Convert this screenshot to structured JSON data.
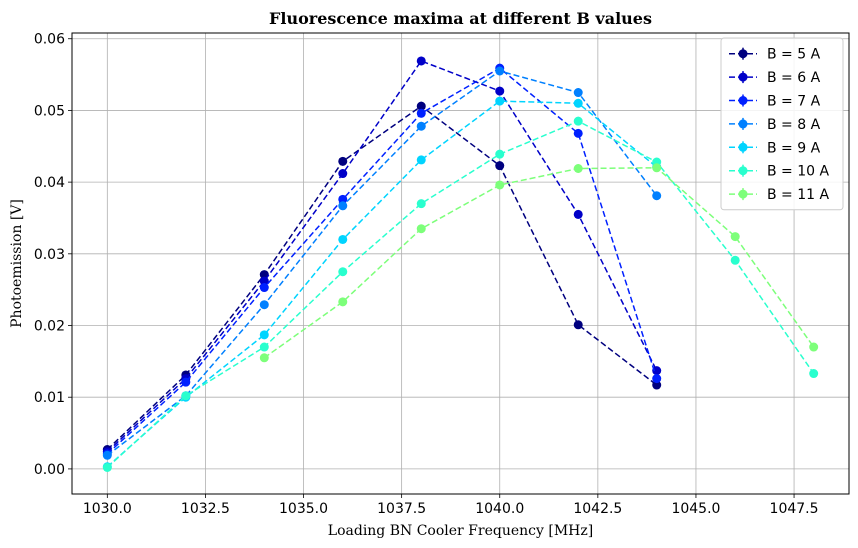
{
  "chart_data": {
    "type": "line",
    "title": "Fluorescence maxima at different B values",
    "xlabel": "Loading BN Cooler Frequency [MHz]",
    "ylabel": "Photoemission [V]",
    "xlim": [
      1029.1,
      1048.9
    ],
    "ylim": [
      -0.0035,
      0.0608
    ],
    "xticks": [
      "1030.0",
      "1032.5",
      "1035.0",
      "1037.5",
      "1040.0",
      "1042.5",
      "1045.0",
      "1047.5"
    ],
    "xtick_values": [
      1030.0,
      1032.5,
      1035.0,
      1037.5,
      1040.0,
      1042.5,
      1045.0,
      1047.5
    ],
    "yticks": [
      "0.00",
      "0.01",
      "0.02",
      "0.03",
      "0.04",
      "0.05",
      "0.06"
    ],
    "ytick_values": [
      0.0,
      0.01,
      0.02,
      0.03,
      0.04,
      0.05,
      0.06
    ],
    "grid": true,
    "legend_position": "top-right",
    "series": [
      {
        "name": "B = 5 A",
        "color": "#00007f",
        "x": [
          1030,
          1032,
          1034,
          1036,
          1038,
          1040,
          1042,
          1044
        ],
        "y": [
          0.0027,
          0.0131,
          0.0271,
          0.0429,
          0.0506,
          0.0423,
          0.0201,
          0.0117
        ],
        "err": [
          0.0004,
          0.0004,
          0.0005,
          0.0006,
          0.0006,
          0.0006,
          0.0004,
          0.0004
        ]
      },
      {
        "name": "B = 6 A",
        "color": "#0000c8",
        "x": [
          1030,
          1032,
          1034,
          1036,
          1038,
          1040,
          1042,
          1044
        ],
        "y": [
          0.0024,
          0.0126,
          0.0262,
          0.0412,
          0.0569,
          0.0527,
          0.0355,
          0.0137
        ],
        "err": [
          0.0004,
          0.0004,
          0.0005,
          0.0006,
          0.0006,
          0.0006,
          0.0006,
          0.0004
        ]
      },
      {
        "name": "B = 7 A",
        "color": "#0020ff",
        "x": [
          1030,
          1032,
          1034,
          1036,
          1038,
          1040,
          1042,
          1044
        ],
        "y": [
          0.0021,
          0.0121,
          0.0253,
          0.0376,
          0.0496,
          0.0559,
          0.0468,
          0.0126
        ],
        "err": [
          0.0004,
          0.0004,
          0.0005,
          0.0006,
          0.0006,
          0.0006,
          0.0005,
          0.0004
        ]
      },
      {
        "name": "B = 8 A",
        "color": "#0080ff",
        "x": [
          1030,
          1032,
          1034,
          1036,
          1038,
          1040,
          1042,
          1044
        ],
        "y": [
          0.0019,
          0.0102,
          0.0229,
          0.0367,
          0.0478,
          0.0555,
          0.0525,
          0.0381
        ],
        "err": [
          0.0004,
          0.0004,
          0.0005,
          0.0006,
          0.0006,
          0.0006,
          0.0006,
          0.0005
        ]
      },
      {
        "name": "B = 9 A",
        "color": "#00d4ff",
        "x": [
          1030,
          1032,
          1034,
          1036,
          1038,
          1040,
          1042,
          1044
        ],
        "y": [
          0.0003,
          0.01,
          0.0187,
          0.032,
          0.0431,
          0.0513,
          0.051,
          0.0421
        ],
        "err": [
          0.0004,
          0.0004,
          0.0005,
          0.0005,
          0.0005,
          0.0006,
          0.0006,
          0.0005
        ]
      },
      {
        "name": "B = 10 A",
        "color": "#29ffce",
        "x": [
          1030,
          1032,
          1034,
          1036,
          1038,
          1040,
          1042,
          1044,
          1046,
          1048
        ],
        "y": [
          0.0002,
          0.0102,
          0.017,
          0.0275,
          0.037,
          0.0439,
          0.0485,
          0.0428,
          0.0291,
          0.0133
        ],
        "err": [
          0.0004,
          0.0004,
          0.0005,
          0.0005,
          0.0005,
          0.0006,
          0.0006,
          0.0005,
          0.0005,
          0.0004
        ]
      },
      {
        "name": "B = 11 A",
        "color": "#7dff7a",
        "x": [
          1034,
          1036,
          1038,
          1040,
          1042,
          1044,
          1046,
          1048
        ],
        "y": [
          0.0155,
          0.0233,
          0.0335,
          0.0396,
          0.0419,
          0.042,
          0.0324,
          0.017
        ],
        "err": [
          0.0005,
          0.0005,
          0.0005,
          0.0005,
          0.0006,
          0.0005,
          0.0005,
          0.0004
        ]
      }
    ]
  }
}
